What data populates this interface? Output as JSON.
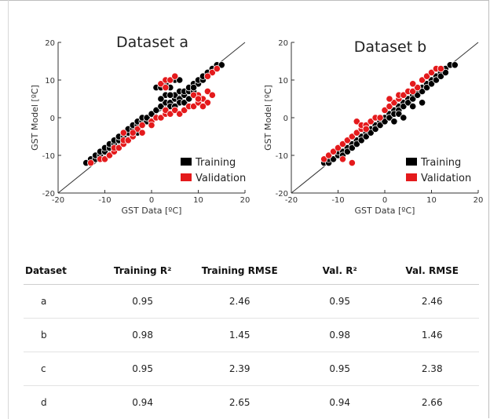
{
  "chart_data": [
    {
      "type": "scatter",
      "title": "Dataset a",
      "xlabel": "GST Data [ºC]",
      "ylabel": "GST Model [ºC]",
      "xlim": [
        -20,
        20
      ],
      "ylim": [
        -20,
        20
      ],
      "xticks": [
        "-20",
        "-10",
        "0",
        "10",
        "20"
      ],
      "yticks": [
        "-20",
        "-10",
        "0",
        "10",
        "20"
      ],
      "legend_position": "bottom-right",
      "reference_line": "1:1",
      "series": [
        {
          "name": "Training",
          "color": "#000000",
          "points": [
            [
              -14,
              -12
            ],
            [
              -13,
              -11
            ],
            [
              -12,
              -11
            ],
            [
              -12,
              -10
            ],
            [
              -11,
              -10
            ],
            [
              -11,
              -9
            ],
            [
              -10,
              -9
            ],
            [
              -10,
              -8
            ],
            [
              -9,
              -8
            ],
            [
              -9,
              -7
            ],
            [
              -8,
              -7
            ],
            [
              -8,
              -6
            ],
            [
              -7,
              -6
            ],
            [
              -7,
              -5
            ],
            [
              -6,
              -5
            ],
            [
              -6,
              -4
            ],
            [
              -5,
              -4
            ],
            [
              -5,
              -3
            ],
            [
              -4,
              -3
            ],
            [
              -4,
              -2
            ],
            [
              -3,
              -2
            ],
            [
              -3,
              -1
            ],
            [
              -2,
              -1
            ],
            [
              -2,
              0
            ],
            [
              -1,
              -1
            ],
            [
              -1,
              0
            ],
            [
              0,
              1
            ],
            [
              1,
              2
            ],
            [
              2,
              3
            ],
            [
              3,
              4
            ],
            [
              4,
              4
            ],
            [
              4,
              3
            ],
            [
              5,
              5
            ],
            [
              5,
              6
            ],
            [
              6,
              5
            ],
            [
              6,
              7
            ],
            [
              7,
              6
            ],
            [
              7,
              7
            ],
            [
              8,
              7
            ],
            [
              8,
              8
            ],
            [
              9,
              7
            ],
            [
              9,
              9
            ],
            [
              10,
              9
            ],
            [
              10,
              10
            ],
            [
              11,
              10
            ],
            [
              11,
              11
            ],
            [
              12,
              11
            ],
            [
              12,
              12
            ],
            [
              13,
              12
            ],
            [
              13,
              13
            ],
            [
              14,
              13
            ],
            [
              14,
              14
            ],
            [
              15,
              14
            ],
            [
              1,
              8
            ],
            [
              2,
              8
            ],
            [
              3,
              9
            ],
            [
              4,
              8
            ],
            [
              5,
              10
            ],
            [
              6,
              10
            ],
            [
              3,
              6
            ],
            [
              2,
              5
            ],
            [
              4,
              6
            ],
            [
              6,
              4
            ],
            [
              7,
              4
            ],
            [
              8,
              5
            ],
            [
              -10,
              -11
            ],
            [
              -8,
              -9
            ],
            [
              -6,
              -7
            ],
            [
              -4,
              -5
            ],
            [
              -9,
              -10
            ],
            [
              -3,
              -4
            ],
            [
              5,
              3
            ],
            [
              9,
              8
            ],
            [
              0,
              -1
            ]
          ]
        },
        {
          "name": "Validation",
          "color": "#e41a1c",
          "points": [
            [
              -13,
              -12
            ],
            [
              -11,
              -11
            ],
            [
              -10,
              -11
            ],
            [
              -9,
              -10
            ],
            [
              -8,
              -9
            ],
            [
              -8,
              -8
            ],
            [
              -7,
              -8
            ],
            [
              -6,
              -7
            ],
            [
              -6,
              -6
            ],
            [
              -5,
              -6
            ],
            [
              -4,
              -5
            ],
            [
              -3,
              -3
            ],
            [
              -2,
              -2
            ],
            [
              0,
              -1
            ],
            [
              1,
              0
            ],
            [
              2,
              0
            ],
            [
              3,
              1
            ],
            [
              3,
              2
            ],
            [
              4,
              1
            ],
            [
              5,
              2
            ],
            [
              6,
              1
            ],
            [
              7,
              2
            ],
            [
              8,
              3
            ],
            [
              9,
              3
            ],
            [
              10,
              4
            ],
            [
              10,
              6
            ],
            [
              11,
              5
            ],
            [
              12,
              7
            ],
            [
              12,
              4
            ],
            [
              11,
              3
            ],
            [
              13,
              6
            ],
            [
              13,
              12
            ],
            [
              14,
              13
            ],
            [
              12,
              11
            ],
            [
              2,
              9
            ],
            [
              3,
              10
            ],
            [
              4,
              10
            ],
            [
              5,
              11
            ],
            [
              3,
              8
            ],
            [
              9,
              6
            ],
            [
              10,
              5
            ],
            [
              -6,
              -4
            ],
            [
              -4,
              -4
            ],
            [
              -2,
              -4
            ],
            [
              0,
              -2
            ]
          ]
        }
      ]
    },
    {
      "type": "scatter",
      "title": "Dataset b",
      "xlabel": "GST Data [ºC]",
      "ylabel": "GST Model [ºC]",
      "xlim": [
        -20,
        20
      ],
      "ylim": [
        -20,
        20
      ],
      "xticks": [
        "-20",
        "-10",
        "0",
        "10",
        "20"
      ],
      "yticks": [
        "-20",
        "-10",
        "0",
        "10",
        "20"
      ],
      "legend_position": "bottom-right",
      "reference_line": "1:1",
      "series": [
        {
          "name": "Training",
          "color": "#000000",
          "points": [
            [
              -13,
              -12
            ],
            [
              -12,
              -12
            ],
            [
              -12,
              -11
            ],
            [
              -11,
              -11
            ],
            [
              -10,
              -10
            ],
            [
              -10,
              -9
            ],
            [
              -9,
              -9
            ],
            [
              -9,
              -10
            ],
            [
              -8,
              -8
            ],
            [
              -8,
              -9
            ],
            [
              -7,
              -7
            ],
            [
              -7,
              -8
            ],
            [
              -6,
              -6
            ],
            [
              -6,
              -7
            ],
            [
              -5,
              -5
            ],
            [
              -5,
              -6
            ],
            [
              -4,
              -4
            ],
            [
              -4,
              -5
            ],
            [
              -3,
              -3
            ],
            [
              -3,
              -4
            ],
            [
              -2,
              -2
            ],
            [
              -2,
              -3
            ],
            [
              -1,
              -1
            ],
            [
              -1,
              -2
            ],
            [
              0,
              0
            ],
            [
              0,
              -1
            ],
            [
              1,
              1
            ],
            [
              1,
              0
            ],
            [
              2,
              2
            ],
            [
              2,
              1
            ],
            [
              3,
              3
            ],
            [
              3,
              2
            ],
            [
              4,
              4
            ],
            [
              4,
              3
            ],
            [
              5,
              5
            ],
            [
              5,
              4
            ],
            [
              6,
              6
            ],
            [
              6,
              5
            ],
            [
              7,
              7
            ],
            [
              7,
              6
            ],
            [
              8,
              8
            ],
            [
              8,
              7
            ],
            [
              9,
              9
            ],
            [
              9,
              8
            ],
            [
              10,
              10
            ],
            [
              10,
              9
            ],
            [
              11,
              11
            ],
            [
              11,
              10
            ],
            [
              12,
              12
            ],
            [
              12,
              11
            ],
            [
              13,
              13
            ],
            [
              13,
              12
            ],
            [
              14,
              14
            ],
            [
              15,
              14
            ],
            [
              3,
              1
            ],
            [
              4,
              0
            ],
            [
              6,
              3
            ],
            [
              8,
              4
            ],
            [
              2,
              -1
            ]
          ]
        },
        {
          "name": "Validation",
          "color": "#e41a1c",
          "points": [
            [
              -13,
              -11
            ],
            [
              -12,
              -10
            ],
            [
              -11,
              -9
            ],
            [
              -10,
              -8
            ],
            [
              -9,
              -7
            ],
            [
              -9,
              -11
            ],
            [
              -8,
              -6
            ],
            [
              -7,
              -5
            ],
            [
              -7,
              -12
            ],
            [
              -6,
              -4
            ],
            [
              -6,
              -1
            ],
            [
              -5,
              -3
            ],
            [
              -5,
              -2
            ],
            [
              -4,
              -2
            ],
            [
              -3,
              -1
            ],
            [
              -2,
              0
            ],
            [
              -1,
              0
            ],
            [
              0,
              2
            ],
            [
              1,
              3
            ],
            [
              2,
              4
            ],
            [
              3,
              5
            ],
            [
              3,
              6
            ],
            [
              4,
              6
            ],
            [
              5,
              7
            ],
            [
              6,
              7
            ],
            [
              7,
              8
            ],
            [
              8,
              10
            ],
            [
              9,
              11
            ],
            [
              10,
              12
            ],
            [
              11,
              13
            ],
            [
              12,
              13
            ],
            [
              -4,
              -3
            ],
            [
              1,
              5
            ],
            [
              6,
              9
            ]
          ]
        }
      ]
    }
  ],
  "table": {
    "headers": [
      "Dataset",
      "Training R²",
      "Training RMSE",
      "Val. R²",
      "Val.  RMSE"
    ],
    "rows": [
      [
        "a",
        "0.95",
        "2.46",
        "0.95",
        "2.46"
      ],
      [
        "b",
        "0.98",
        "1.45",
        "0.98",
        "1.46"
      ],
      [
        "c",
        "0.95",
        "2.39",
        "0.95",
        "2.38"
      ],
      [
        "d",
        "0.94",
        "2.65",
        "0.94",
        "2.66"
      ]
    ]
  }
}
